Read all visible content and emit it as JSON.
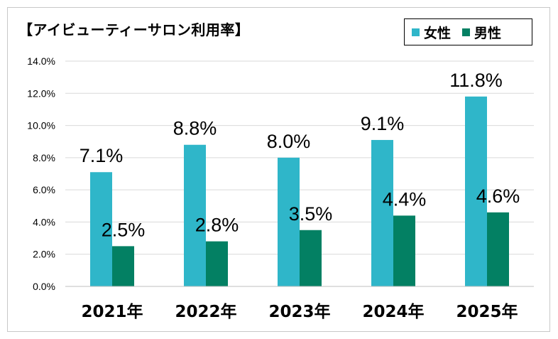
{
  "chart_data": {
    "type": "bar",
    "title": "【アイビューティーサロン利用率】",
    "categories": [
      "2021年",
      "2022年",
      "2023年",
      "2024年",
      "2025年"
    ],
    "series": [
      {
        "name": "女性",
        "color": "#2fb6c9",
        "values": [
          7.1,
          8.8,
          8.0,
          9.1,
          11.8
        ],
        "labels": [
          "7.1%",
          "8.8%",
          "8.0%",
          "9.1%",
          "11.8%"
        ]
      },
      {
        "name": "男性",
        "color": "#038063",
        "values": [
          2.5,
          2.8,
          3.5,
          4.4,
          4.6
        ],
        "labels": [
          "2.5%",
          "2.8%",
          "3.5%",
          "4.4%",
          "4.6%"
        ]
      }
    ],
    "ylim": [
      0,
      14
    ],
    "yticks": [
      "0.0%",
      "2.0%",
      "4.0%",
      "6.0%",
      "8.0%",
      "10.0%",
      "12.0%",
      "14.0%"
    ],
    "grid": true,
    "legend_position": "top-right"
  }
}
